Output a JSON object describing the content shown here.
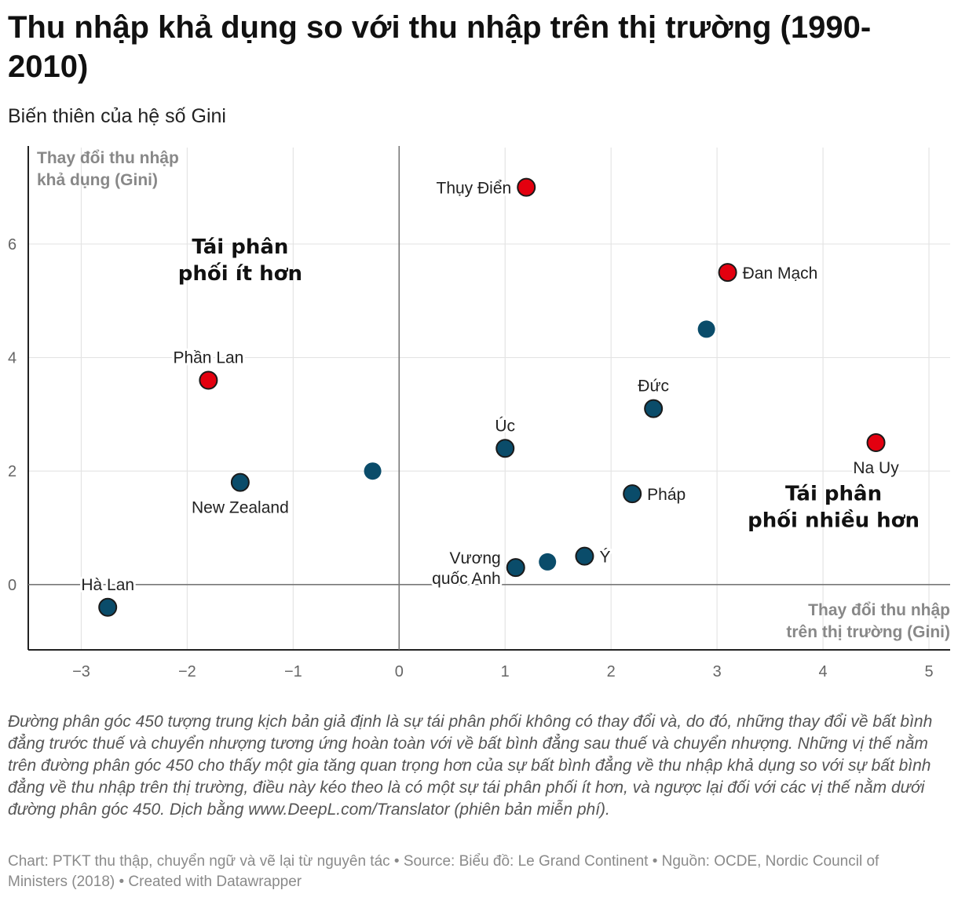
{
  "title": "Thu nhập khả dụng so với thu nhập trên thị trường (1990-2010)",
  "subtitle": "Biến thiên của hệ số Gini",
  "note": "Đường phân góc 450 tượng trung kịch bản giả định là sự tái phân phối không có thay đổi và, do đó, những thay đổi về bất bình đẳng trước thuế và chuyển nhượng tương ứng hoàn toàn với về bất bình đẳng sau thuế và chuyển nhượng. Những vị thế nằm trên đường phân góc 450 cho thấy một gia tăng quan trọng hơn của sự bất bình đẳng về thu nhập khả dụng so với sự bất bình đẳng về thu nhập trên thị trường, điều này kéo theo là có một sự tái phân phối ít hơn, và ngược lại đối với các vị thế nằm dưới đường phân góc 450. Dịch bằng www.DeepL.com/Translator (phiên bản miễn phí).",
  "credit": "Chart: PTKT thu thập, chuyển ngữ và vẽ lại từ nguyên tác • Source: Biểu đồ: Le Grand Continent • Nguồn: OCDE, Nordic Council of Ministers (2018) • Created with Datawrapper",
  "colors": {
    "nordic": "#e3000f",
    "other": "#0a4c6a",
    "outline": "#1a1a1a",
    "grid": "#e4e4e4",
    "axis": "#777777"
  },
  "chart_data": {
    "type": "scatter",
    "x_title_lines": [
      "Thay đổi thu nhập",
      "trên thị trường (Gini)"
    ],
    "y_title_lines": [
      "Thay đổi thu nhập",
      "khả dụng (Gini)"
    ],
    "xlim": [
      -3.5,
      5.2
    ],
    "ylim": [
      -1.15,
      7.7
    ],
    "xticks": [
      -3,
      -2,
      -1,
      0,
      1,
      2,
      3,
      4,
      5
    ],
    "xtick_labels": [
      "−3",
      "−2",
      "−1",
      "0",
      "1",
      "2",
      "3",
      "4",
      "5"
    ],
    "yticks": [
      0,
      2,
      4,
      6
    ],
    "ytick_labels": [
      "0",
      "2",
      "4",
      "6"
    ],
    "grid": true,
    "quadrant_labels": [
      {
        "lines": [
          "Tái phân",
          "phối ít hơn"
        ],
        "x": -1.5,
        "y": 5.5
      },
      {
        "lines": [
          "Tái phân",
          "phối nhiều hơn"
        ],
        "x": 4.1,
        "y": 1.15
      }
    ],
    "points": [
      {
        "label_lines": [
          "Thụy Điển"
        ],
        "x": 1.2,
        "y": 7.0,
        "group": "nordic",
        "outlined": true,
        "pos": "left"
      },
      {
        "label_lines": [
          "Đan Mạch"
        ],
        "x": 3.1,
        "y": 5.5,
        "group": "nordic",
        "outlined": true,
        "pos": "right"
      },
      {
        "label_lines": [],
        "x": 2.9,
        "y": 4.5,
        "group": "other",
        "outlined": false,
        "pos": "none"
      },
      {
        "label_lines": [
          "Phần Lan"
        ],
        "x": -1.8,
        "y": 3.6,
        "group": "nordic",
        "outlined": true,
        "pos": "top"
      },
      {
        "label_lines": [
          "Đức"
        ],
        "x": 2.4,
        "y": 3.1,
        "group": "other",
        "outlined": true,
        "pos": "top"
      },
      {
        "label_lines": [
          "Úc"
        ],
        "x": 1.0,
        "y": 2.4,
        "group": "other",
        "outlined": true,
        "pos": "top"
      },
      {
        "label_lines": [
          "Na Uy"
        ],
        "x": 4.5,
        "y": 2.5,
        "group": "nordic",
        "outlined": true,
        "pos": "bottom"
      },
      {
        "label_lines": [],
        "x": -0.25,
        "y": 2.0,
        "group": "other",
        "outlined": false,
        "pos": "none"
      },
      {
        "label_lines": [
          "New Zealand"
        ],
        "x": -1.5,
        "y": 1.8,
        "group": "other",
        "outlined": true,
        "pos": "bottom"
      },
      {
        "label_lines": [
          "Pháp"
        ],
        "x": 2.2,
        "y": 1.6,
        "group": "other",
        "outlined": true,
        "pos": "right"
      },
      {
        "label_lines": [
          "Ý"
        ],
        "x": 1.75,
        "y": 0.5,
        "group": "other",
        "outlined": true,
        "pos": "right"
      },
      {
        "label_lines": [],
        "x": 1.4,
        "y": 0.4,
        "group": "other",
        "outlined": false,
        "pos": "none"
      },
      {
        "label_lines": [
          "Vương",
          "quốc Anh"
        ],
        "x": 1.1,
        "y": 0.3,
        "group": "other",
        "outlined": true,
        "pos": "left"
      },
      {
        "label_lines": [
          "Hà Lan"
        ],
        "x": -2.75,
        "y": -0.4,
        "group": "other",
        "outlined": true,
        "pos": "top"
      }
    ]
  }
}
